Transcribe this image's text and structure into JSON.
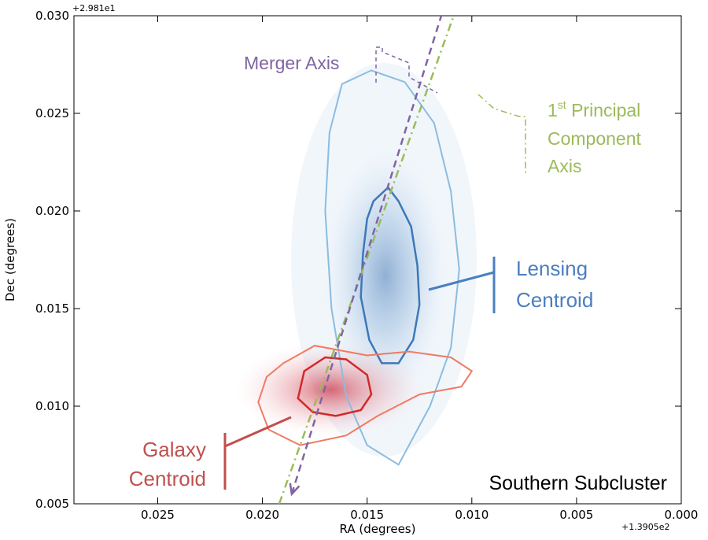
{
  "chart_data": {
    "type": "scatter",
    "xlabel": "RA (degrees)",
    "ylabel": "Dec (degrees)",
    "x_offset_label": "+1.3905e2",
    "y_offset_label": "+2.981e1",
    "xlim": [
      0.029,
      0.0
    ],
    "ylim": [
      0.005,
      0.03
    ],
    "x_inverted": true,
    "x_ticks": [
      "0.025",
      "0.020",
      "0.015",
      "0.010",
      "0.005",
      "0.000"
    ],
    "x_tick_values": [
      0.025,
      0.02,
      0.015,
      0.01,
      0.005,
      0.0
    ],
    "y_ticks": [
      "0.005",
      "0.010",
      "0.015",
      "0.020",
      "0.025",
      "0.030"
    ],
    "y_tick_values": [
      0.005,
      0.01,
      0.015,
      0.02,
      0.025,
      0.03
    ],
    "grid": false,
    "series": [
      {
        "kind": "density-contour",
        "centroid_label": "Lensing Centroid",
        "color": "#4a7fc0",
        "light_color": "#9fc6e6",
        "center": [
          0.0139,
          0.0165
        ],
        "inner_contour": [
          [
            0.0147,
            0.0205
          ],
          [
            0.014,
            0.0212
          ],
          [
            0.0135,
            0.0205
          ],
          [
            0.0129,
            0.0192
          ],
          [
            0.0126,
            0.0172
          ],
          [
            0.0125,
            0.0152
          ],
          [
            0.0128,
            0.0134
          ],
          [
            0.0135,
            0.0122
          ],
          [
            0.0143,
            0.0122
          ],
          [
            0.0149,
            0.0134
          ],
          [
            0.0153,
            0.0156
          ],
          [
            0.0152,
            0.0178
          ],
          [
            0.015,
            0.0196
          ]
        ],
        "outer_contour": [
          [
            0.0162,
            0.0265
          ],
          [
            0.0148,
            0.0272
          ],
          [
            0.0132,
            0.0266
          ],
          [
            0.0118,
            0.0245
          ],
          [
            0.011,
            0.021
          ],
          [
            0.0106,
            0.017
          ],
          [
            0.011,
            0.013
          ],
          [
            0.012,
            0.01
          ],
          [
            0.0135,
            0.007
          ],
          [
            0.015,
            0.008
          ],
          [
            0.016,
            0.0105
          ],
          [
            0.0167,
            0.015
          ],
          [
            0.017,
            0.02
          ],
          [
            0.0168,
            0.024
          ]
        ]
      },
      {
        "kind": "density-contour",
        "centroid_label": "Galaxy Centroid",
        "color": "#cc2f2f",
        "light_color": "#f07a62",
        "center": [
          0.0166,
          0.0108
        ],
        "inner_contour": [
          [
            0.018,
            0.0118
          ],
          [
            0.017,
            0.0125
          ],
          [
            0.016,
            0.0124
          ],
          [
            0.015,
            0.0116
          ],
          [
            0.0148,
            0.0106
          ],
          [
            0.0153,
            0.0098
          ],
          [
            0.0165,
            0.0095
          ],
          [
            0.0176,
            0.0097
          ],
          [
            0.0183,
            0.0104
          ]
        ],
        "outer_contour": [
          [
            0.019,
            0.0122
          ],
          [
            0.0175,
            0.0131
          ],
          [
            0.015,
            0.0126
          ],
          [
            0.013,
            0.0128
          ],
          [
            0.011,
            0.0125
          ],
          [
            0.01,
            0.0118
          ],
          [
            0.0105,
            0.011
          ],
          [
            0.0125,
            0.0106
          ],
          [
            0.0145,
            0.0095
          ],
          [
            0.016,
            0.0085
          ],
          [
            0.0182,
            0.008
          ],
          [
            0.0197,
            0.0088
          ],
          [
            0.0202,
            0.0102
          ],
          [
            0.0198,
            0.0115
          ]
        ]
      }
    ],
    "lines": [
      {
        "label": "Merger Axis",
        "style": "dashed",
        "color": "#8064a2",
        "points": [
          [
            0.0186,
            0.0055
          ],
          [
            0.0114,
            0.0302
          ]
        ]
      },
      {
        "label": "1st Principal Component Axis",
        "style": "dashdot",
        "color": "#9bbb59",
        "points": [
          [
            0.0192,
            0.005
          ],
          [
            0.0108,
            0.0302
          ]
        ]
      }
    ]
  },
  "annotations": {
    "merger_axis": "Merger Axis",
    "pca_axis_sup_num": "1",
    "pca_axis_sup_text": "st",
    "pca_axis_line1_rest": " Principal",
    "pca_axis_line2": "Component",
    "pca_axis_line3": "Axis",
    "lensing_line1": "Lensing",
    "lensing_line2": "Centroid",
    "galaxy_line1": "Galaxy",
    "galaxy_line2": "Centroid",
    "subcluster": "Southern Subcluster"
  },
  "colors": {
    "merger": "#8064a2",
    "pca": "#9bbb59",
    "lensing": "#4a7fc0",
    "galaxy": "#c0504d"
  }
}
